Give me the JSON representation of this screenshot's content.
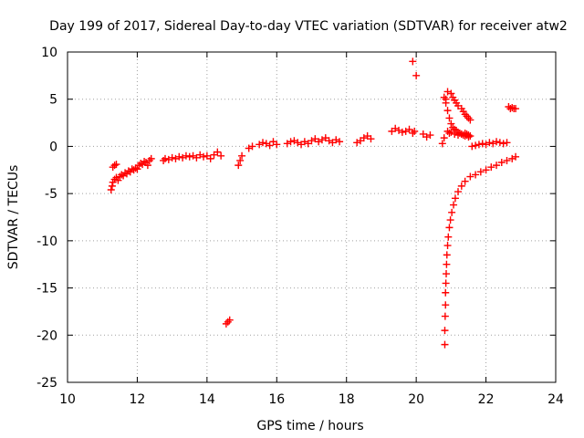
{
  "chart_data": {
    "type": "scatter",
    "title": "Day 199 of 2017, Sidereal Day-to-day VTEC variation (SDTVAR) for receiver atw2",
    "xlabel": "GPS time / hours",
    "ylabel": "SDTVAR / TECUs",
    "xlim": [
      10,
      24
    ],
    "ylim": [
      -25,
      10
    ],
    "xticks": [
      10,
      12,
      14,
      16,
      18,
      20,
      22,
      24
    ],
    "yticks": [
      -25,
      -20,
      -15,
      -10,
      -5,
      0,
      5,
      10
    ],
    "grid": true,
    "marker": "+",
    "color": "#ff0000",
    "series": [
      {
        "name": "SDTVAR",
        "x": [
          11.25,
          11.28,
          11.3,
          11.3,
          11.35,
          11.35,
          11.4,
          11.4,
          11.45,
          11.5,
          11.55,
          11.6,
          11.65,
          11.7,
          11.75,
          11.8,
          11.85,
          11.9,
          11.95,
          12.0,
          12.05,
          12.1,
          12.15,
          12.2,
          12.25,
          12.3,
          12.35,
          12.4,
          12.75,
          12.8,
          12.9,
          13.0,
          13.1,
          13.2,
          13.3,
          13.4,
          13.5,
          13.6,
          13.7,
          13.8,
          13.9,
          14.0,
          14.1,
          14.2,
          14.3,
          14.4,
          14.55,
          14.6,
          14.65,
          14.9,
          14.95,
          15.0,
          15.2,
          15.3,
          15.5,
          15.6,
          15.7,
          15.8,
          15.9,
          16.0,
          16.3,
          16.4,
          16.5,
          16.6,
          16.7,
          16.8,
          16.9,
          17.0,
          17.1,
          17.2,
          17.3,
          17.4,
          17.5,
          17.6,
          17.7,
          17.8,
          18.3,
          18.4,
          18.5,
          18.6,
          18.7,
          19.3,
          19.4,
          19.5,
          19.6,
          19.7,
          19.8,
          19.9,
          19.95,
          19.9,
          20.0,
          20.2,
          20.3,
          20.4,
          20.75,
          20.8,
          20.8,
          20.85,
          20.9,
          20.95,
          21.0,
          21.05,
          21.1,
          21.15,
          21.2,
          21.25,
          21.3,
          21.35,
          21.4,
          21.45,
          21.5,
          20.85,
          20.9,
          21.0,
          21.05,
          21.1,
          21.15,
          21.2,
          21.3,
          21.35,
          21.4,
          21.45,
          21.5,
          21.55,
          20.9,
          20.95,
          21.0,
          21.1,
          21.2,
          21.3,
          21.4,
          21.45,
          21.5,
          21.55,
          20.82,
          20.82,
          20.83,
          20.84,
          20.84,
          20.85,
          20.86,
          20.87,
          20.88,
          20.9,
          20.92,
          20.95,
          20.98,
          21.02,
          21.07,
          21.12,
          21.2,
          21.3,
          21.4,
          21.55,
          21.7,
          21.85,
          22.0,
          22.15,
          22.3,
          22.45,
          22.6,
          22.75,
          22.85,
          21.6,
          21.7,
          21.8,
          21.9,
          22.0,
          22.1,
          22.2,
          22.3,
          22.4,
          22.5,
          22.6,
          22.65,
          22.7,
          22.75,
          22.8,
          22.85
        ],
        "y": [
          -4.6,
          -4.2,
          -3.8,
          -2.2,
          -3.5,
          -2.0,
          -3.3,
          -1.9,
          -3.6,
          -3.2,
          -3.0,
          -3.1,
          -2.8,
          -2.9,
          -2.6,
          -2.7,
          -2.4,
          -2.5,
          -2.3,
          -2.4,
          -2.0,
          -1.8,
          -1.9,
          -1.6,
          -1.7,
          -2.0,
          -1.5,
          -1.3,
          -1.5,
          -1.3,
          -1.4,
          -1.2,
          -1.3,
          -1.1,
          -1.2,
          -1.0,
          -1.1,
          -1.0,
          -1.2,
          -0.9,
          -1.1,
          -1.0,
          -1.3,
          -0.9,
          -0.6,
          -1.0,
          -18.8,
          -18.6,
          -18.4,
          -2.0,
          -1.5,
          -1.0,
          -0.2,
          0.0,
          0.2,
          0.4,
          0.3,
          0.1,
          0.5,
          0.2,
          0.3,
          0.5,
          0.6,
          0.4,
          0.2,
          0.5,
          0.3,
          0.6,
          0.8,
          0.5,
          0.7,
          0.9,
          0.6,
          0.4,
          0.7,
          0.5,
          0.4,
          0.6,
          0.9,
          1.1,
          0.8,
          1.6,
          1.9,
          1.7,
          1.5,
          1.6,
          1.8,
          1.4,
          1.6,
          9.0,
          7.5,
          1.3,
          1.0,
          1.2,
          0.3,
          0.9,
          5.2,
          4.6,
          3.8,
          3.0,
          2.4,
          2.0,
          1.8,
          1.7,
          1.5,
          1.4,
          1.3,
          1.2,
          1.4,
          1.3,
          1.2,
          5.0,
          5.8,
          5.6,
          5.2,
          4.9,
          4.6,
          4.3,
          4.0,
          3.7,
          3.4,
          3.2,
          3.0,
          2.8,
          1.6,
          1.4,
          1.5,
          1.3,
          1.2,
          1.3,
          1.1,
          1.2,
          1.0,
          1.1,
          -21.0,
          -19.5,
          -18.0,
          -16.8,
          -15.5,
          -14.5,
          -13.5,
          -12.5,
          -11.5,
          -10.5,
          -9.6,
          -8.6,
          -7.8,
          -7.0,
          -6.2,
          -5.5,
          -4.8,
          -4.2,
          -3.7,
          -3.2,
          -3.0,
          -2.7,
          -2.5,
          -2.2,
          -2.0,
          -1.7,
          -1.5,
          -1.3,
          -1.1,
          0.0,
          0.1,
          0.2,
          0.3,
          0.2,
          0.4,
          0.3,
          0.5,
          0.4,
          0.3,
          0.4,
          4.2,
          4.0,
          4.1,
          4.0,
          4.0
        ]
      }
    ]
  }
}
